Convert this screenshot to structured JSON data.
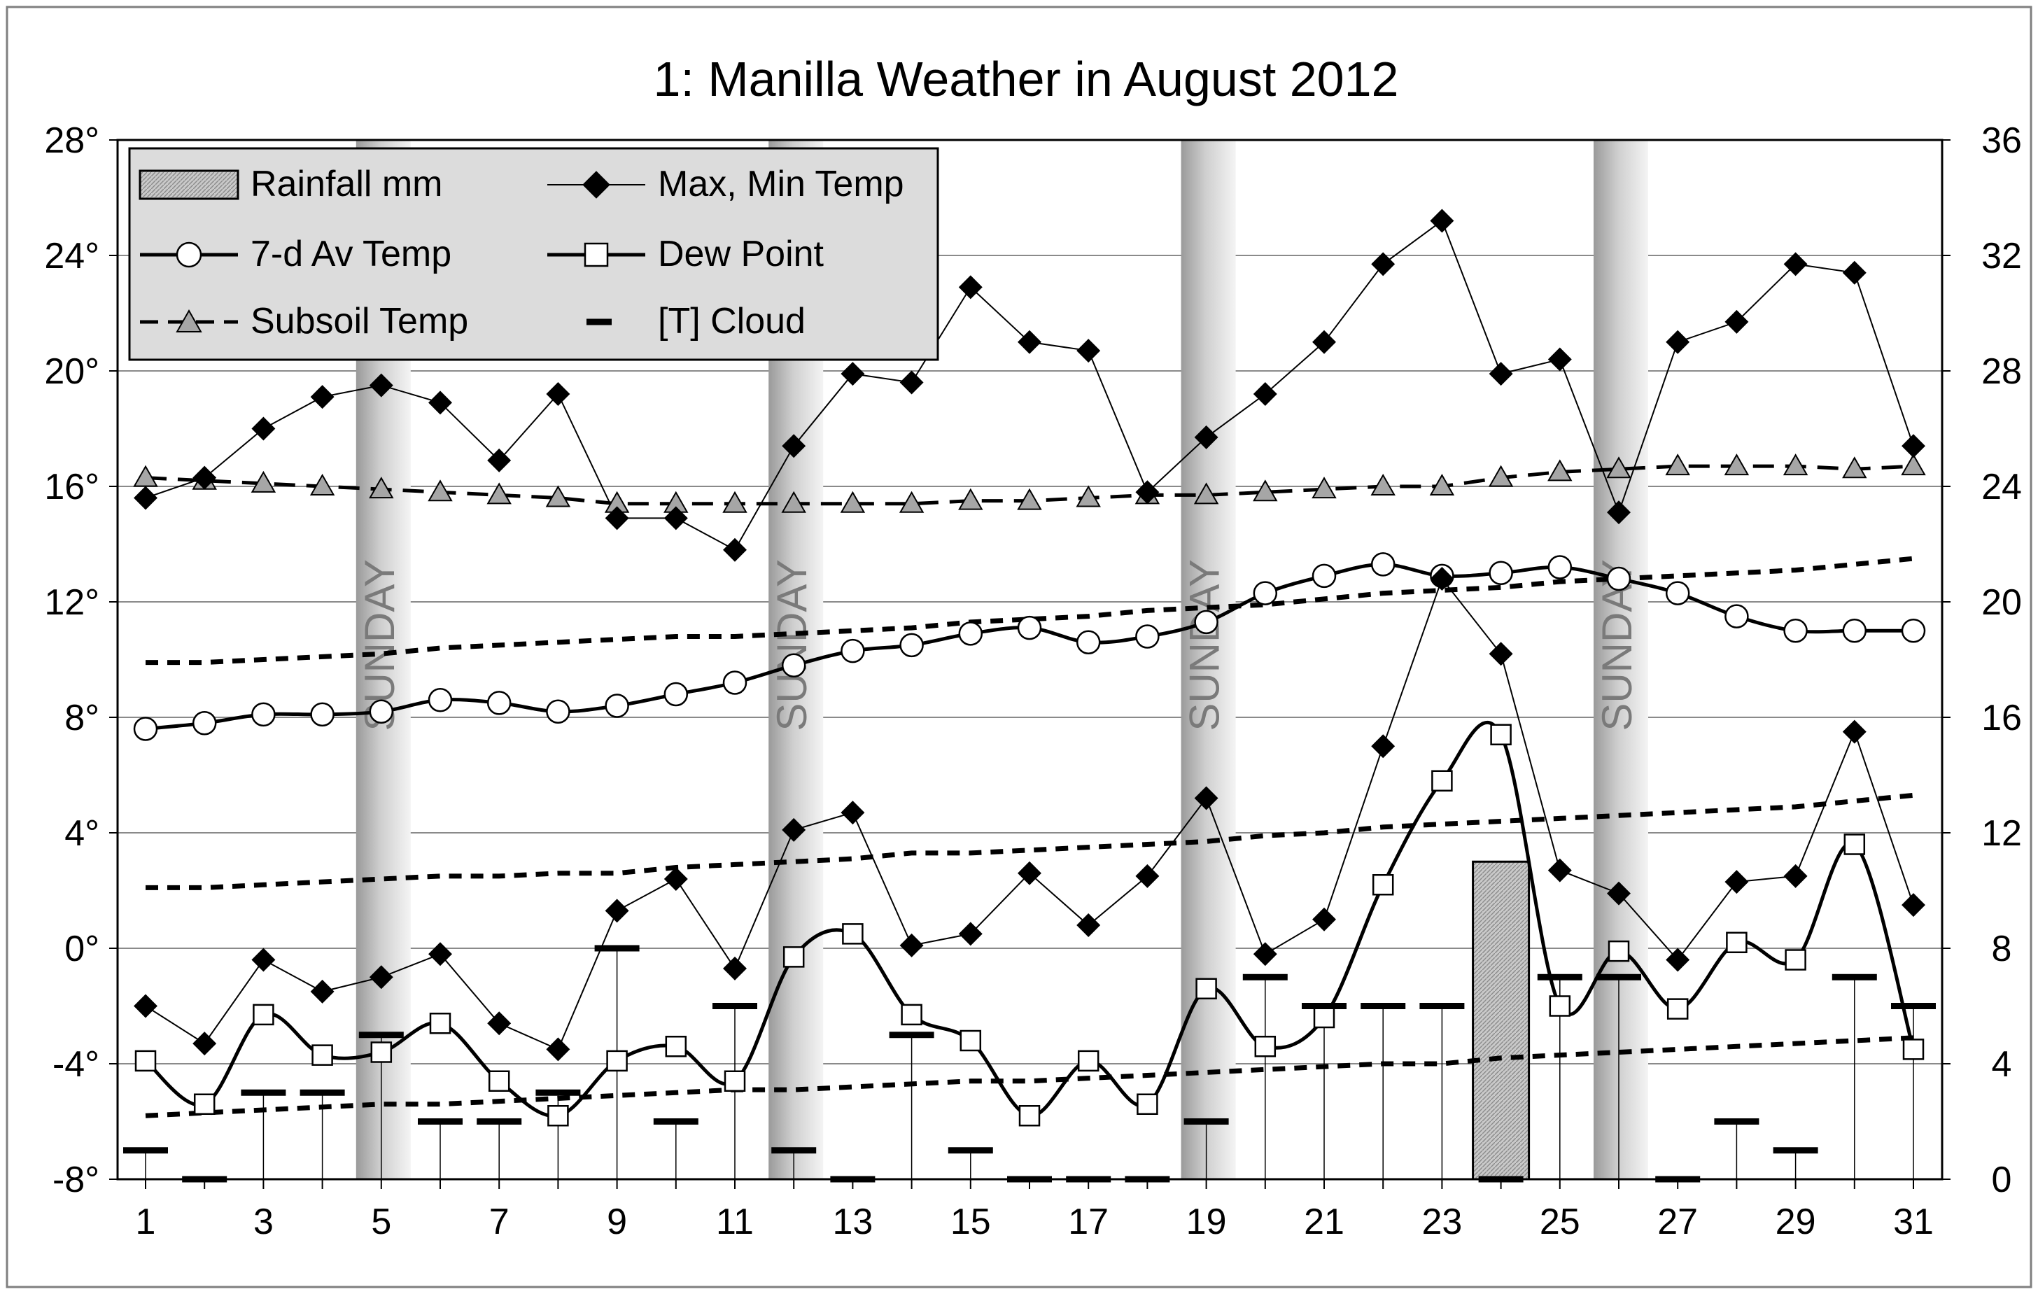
{
  "chart_data": {
    "type": "line",
    "title": "1: Manilla Weather in August 2012",
    "x": [
      1,
      2,
      3,
      4,
      5,
      6,
      7,
      8,
      9,
      10,
      11,
      12,
      13,
      14,
      15,
      16,
      17,
      18,
      19,
      20,
      21,
      22,
      23,
      24,
      25,
      26,
      27,
      28,
      29,
      30,
      31
    ],
    "x_ticks": [
      "1",
      "3",
      "5",
      "7",
      "9",
      "11",
      "13",
      "15",
      "17",
      "19",
      "21",
      "23",
      "25",
      "27",
      "29",
      "31"
    ],
    "y_left": {
      "min": -8,
      "max": 28,
      "step": 4,
      "tick_labels": [
        "-8°",
        "-4°",
        "0°",
        "4°",
        "8°",
        "12°",
        "16°",
        "20°",
        "24°",
        "28°"
      ]
    },
    "y_right": {
      "min": 0,
      "max": 36,
      "step": 4,
      "tick_labels": [
        "0",
        "4",
        "8",
        "12",
        "16",
        "20",
        "24",
        "28",
        "32",
        "36"
      ]
    },
    "sunday_label": "SUNDAY",
    "sundays": [
      5,
      12,
      19,
      26
    ],
    "legend": {
      "rainfall": "Rainfall mm",
      "maxmin": "Max, Min Temp",
      "avg7": "7-d Av Temp",
      "dew": "Dew Point",
      "subsoil": "Subsoil Temp",
      "cloud": "[T] Cloud"
    },
    "series": {
      "max_temp": [
        15.6,
        16.3,
        18.0,
        19.1,
        19.5,
        18.9,
        16.9,
        19.2,
        14.9,
        14.9,
        13.8,
        17.4,
        19.9,
        19.6,
        22.9,
        21.0,
        20.7,
        15.8,
        17.7,
        19.2,
        21.0,
        23.7,
        25.2,
        19.9,
        20.4,
        15.1,
        21.0,
        21.7,
        23.7,
        23.4,
        17.4
      ],
      "min_temp": [
        -2.0,
        -3.3,
        -0.4,
        -1.5,
        -1.0,
        -0.2,
        -2.6,
        -3.5,
        1.3,
        2.4,
        -0.7,
        4.1,
        4.7,
        0.1,
        0.5,
        2.6,
        0.8,
        2.5,
        5.2,
        -0.2,
        1.0,
        7.0,
        12.8,
        10.2,
        2.7,
        1.9,
        -0.4,
        2.3,
        2.5,
        7.5,
        1.5
      ],
      "avg7_temp": [
        7.6,
        7.8,
        8.1,
        8.1,
        8.2,
        8.6,
        8.5,
        8.2,
        8.4,
        8.8,
        9.2,
        9.8,
        10.3,
        10.5,
        10.9,
        11.1,
        10.6,
        10.8,
        11.3,
        12.3,
        12.9,
        13.3,
        12.9,
        13.0,
        13.2,
        12.8,
        12.3,
        11.5,
        11.0,
        11.0,
        11.0
      ],
      "dew_point": [
        -3.9,
        -5.4,
        -2.3,
        -3.7,
        -3.6,
        -2.6,
        -4.6,
        -5.8,
        -3.9,
        -3.4,
        -4.6,
        -0.3,
        0.5,
        -2.3,
        -3.2,
        -5.8,
        -3.9,
        -5.4,
        -1.4,
        -3.4,
        -2.4,
        2.2,
        5.8,
        7.4,
        -2.0,
        -0.1,
        -2.1,
        0.2,
        -0.4,
        3.6,
        -3.5
      ],
      "subsoil_temp": [
        16.3,
        16.2,
        16.1,
        16.0,
        15.9,
        15.8,
        15.7,
        15.6,
        15.4,
        15.4,
        15.4,
        15.4,
        15.4,
        15.4,
        15.5,
        15.5,
        15.6,
        15.7,
        15.7,
        15.8,
        15.9,
        16.0,
        16.0,
        16.3,
        16.5,
        16.6,
        16.7,
        16.7,
        16.7,
        16.6,
        16.7
      ],
      "cloud_T": [
        -7,
        -8,
        -5,
        -5,
        -3,
        -6,
        -6,
        -5,
        0,
        -6,
        -2,
        -7,
        -8,
        -3,
        -7,
        -8,
        -8,
        -8,
        -6,
        -1,
        -2,
        -2,
        -2,
        -8,
        -1,
        -1,
        -8,
        -6,
        -7,
        -1,
        -2
      ],
      "rainfall_mm": {
        "24": 11.0
      },
      "upper_dotted": [
        17.9,
        17.9,
        18.0,
        18.1,
        18.2,
        18.4,
        18.5,
        18.6,
        18.7,
        18.8,
        18.8,
        18.9,
        19.0,
        19.1,
        19.3,
        19.4,
        19.5,
        19.7,
        19.8,
        19.9,
        20.1,
        20.3,
        20.4,
        20.5,
        20.7,
        20.8,
        20.9,
        21.0,
        21.1,
        21.3,
        21.5
      ],
      "mid_dotted": [
        10.1,
        10.1,
        10.2,
        10.3,
        10.4,
        10.5,
        10.5,
        10.6,
        10.6,
        10.8,
        10.9,
        11.0,
        11.1,
        11.3,
        11.3,
        11.4,
        11.5,
        11.6,
        11.7,
        11.9,
        12.0,
        12.2,
        12.3,
        12.4,
        12.5,
        12.6,
        12.7,
        12.8,
        12.9,
        13.1,
        13.3
      ],
      "low_dotted": [
        2.2,
        2.3,
        2.4,
        2.5,
        2.6,
        2.6,
        2.7,
        2.8,
        2.9,
        3.0,
        3.1,
        3.1,
        3.2,
        3.3,
        3.4,
        3.4,
        3.5,
        3.6,
        3.7,
        3.8,
        3.9,
        4.0,
        4.0,
        4.2,
        4.3,
        4.4,
        4.5,
        4.6,
        4.7,
        4.8,
        4.9
      ]
    }
  }
}
